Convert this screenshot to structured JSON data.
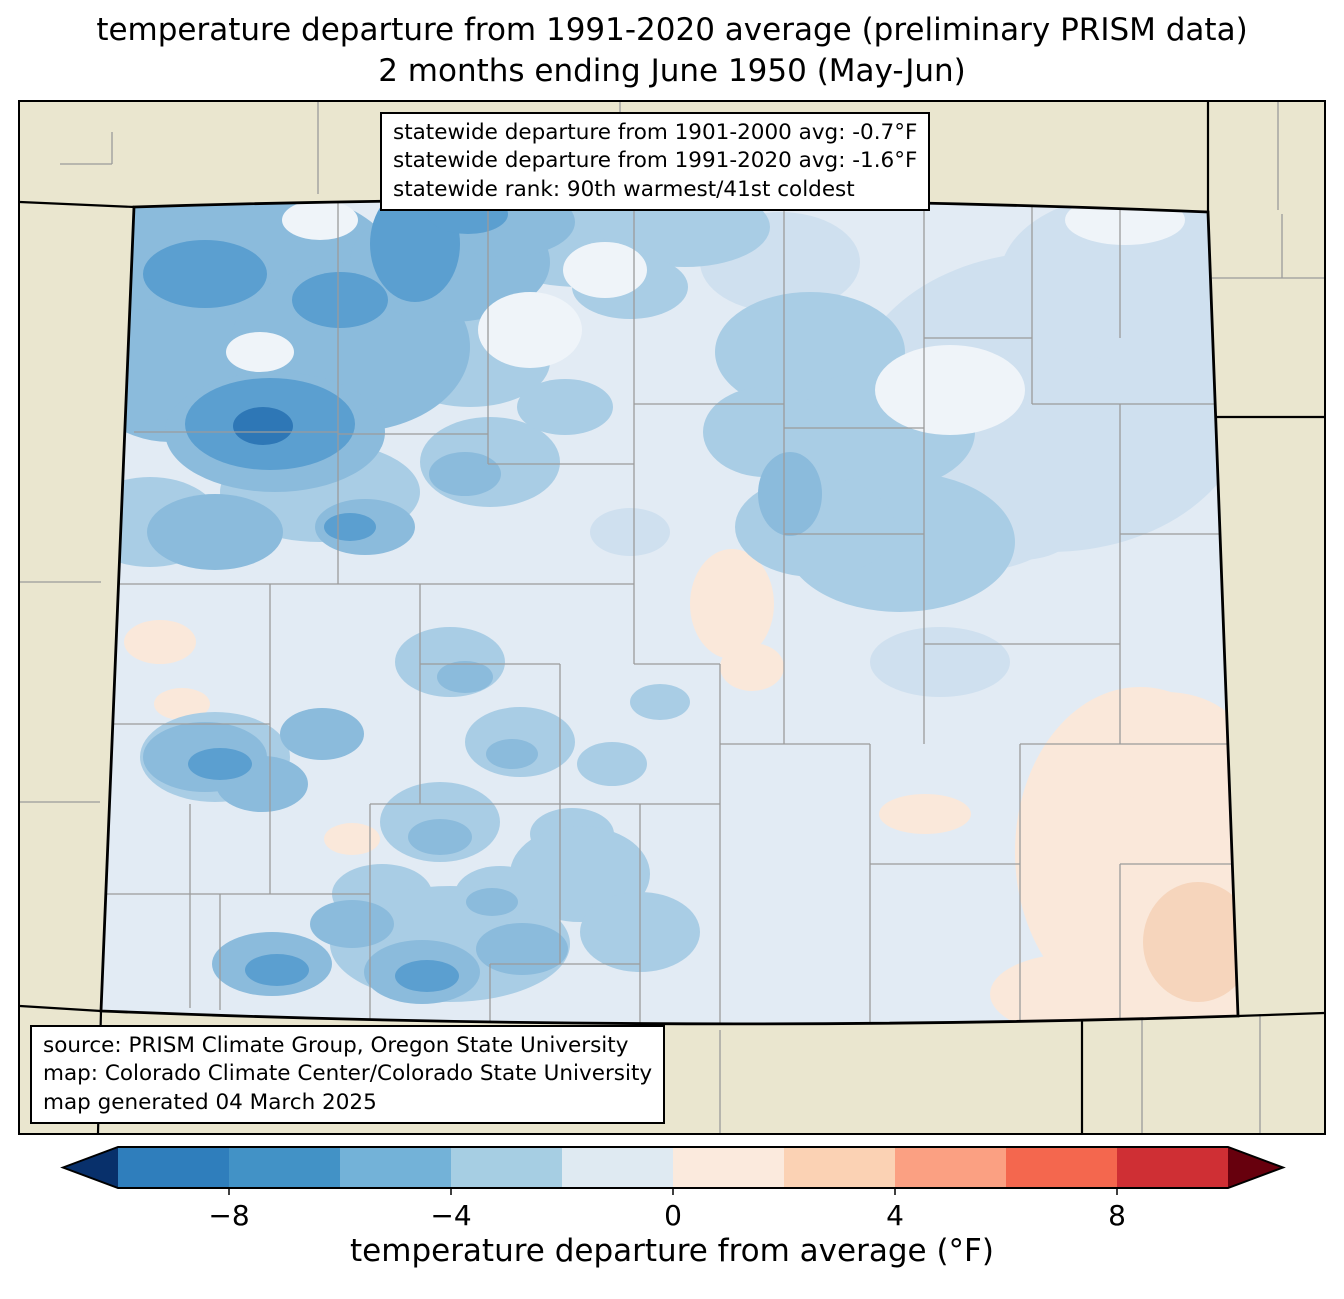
{
  "title": {
    "line1": "temperature departure from 1991-2020 average (preliminary PRISM data)",
    "line2": "2 months ending June 1950 (May-Jun)"
  },
  "stats_box": {
    "line1": "statewide departure from 1901-2000 avg: -0.7°F",
    "line2": "statewide departure from 1991-2020 avg: -1.6°F",
    "line3": "statewide rank: 90th warmest/41st coldest"
  },
  "source_box": {
    "line1": "source: PRISM Climate Group, Oregon State University",
    "line2": "map: Colorado Climate Center/Colorado State University",
    "line3": "map generated 04 March 2025"
  },
  "colorbar": {
    "label": "temperature departure from average (°F)",
    "domain": [
      -10,
      10
    ],
    "ticks": [
      {
        "value": -8,
        "label": "−8"
      },
      {
        "value": -4,
        "label": "−4"
      },
      {
        "value": 0,
        "label": "0"
      },
      {
        "value": 4,
        "label": "4"
      },
      {
        "value": 8,
        "label": "8"
      }
    ],
    "segment_colors": [
      "#2f7ebc",
      "#4292c6",
      "#73b2d8",
      "#a6cee3",
      "#dfeaf2",
      "#fbeadd",
      "#fbd2b4",
      "#fba082",
      "#f4674e",
      "#cf2f34"
    ],
    "left_arrow_color": "#08306b",
    "right_arrow_color": "#67000d"
  },
  "map": {
    "region_colors": {
      "outside_state": "#eae6cf",
      "state_base": "#e2ebf4",
      "blue_light": "#cfe0ef",
      "blue_soft": "#a9cde5",
      "blue_medium": "#8bbbdc",
      "blue_strong": "#5b9fd0",
      "blue_dark": "#2e77b6",
      "peach_light": "#fae8da",
      "peach_medium": "#f6d5bc",
      "pale_spot": "#eff4f9",
      "county_line": "#9b9b9b",
      "state_border": "#000000"
    }
  }
}
